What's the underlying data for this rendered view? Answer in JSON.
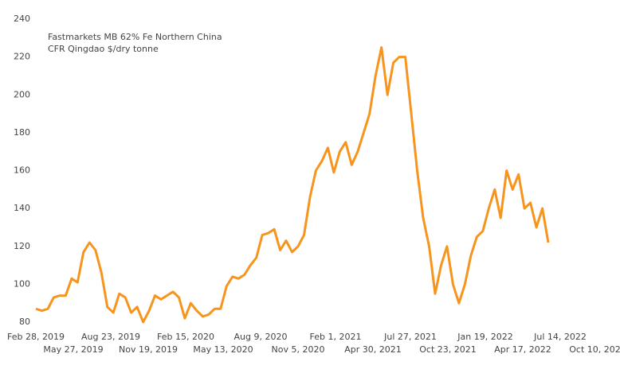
{
  "chart_data": {
    "type": "line",
    "title_lines": [
      "Fastmarkets MB 62% Fe Northern China",
      "CFR Qingdao $/dry tonne"
    ],
    "x": [
      "2019-02-28",
      "2019-03-14",
      "2019-03-28",
      "2019-04-11",
      "2019-04-25",
      "2019-05-09",
      "2019-05-23",
      "2019-06-06",
      "2019-06-20",
      "2019-07-04",
      "2019-07-18",
      "2019-08-01",
      "2019-08-15",
      "2019-08-29",
      "2019-09-12",
      "2019-09-26",
      "2019-10-10",
      "2019-10-24",
      "2019-11-07",
      "2019-11-21",
      "2019-12-05",
      "2019-12-19",
      "2020-01-02",
      "2020-01-16",
      "2020-01-30",
      "2020-02-13",
      "2020-02-27",
      "2020-03-12",
      "2020-03-26",
      "2020-04-09",
      "2020-04-23",
      "2020-05-07",
      "2020-05-21",
      "2020-06-04",
      "2020-06-18",
      "2020-07-02",
      "2020-07-16",
      "2020-07-30",
      "2020-08-13",
      "2020-08-27",
      "2020-09-10",
      "2020-09-24",
      "2020-10-08",
      "2020-10-22",
      "2020-11-05",
      "2020-11-19",
      "2020-12-03",
      "2020-12-17",
      "2020-12-31",
      "2021-01-14",
      "2021-01-28",
      "2021-02-11",
      "2021-02-25",
      "2021-03-11",
      "2021-03-25",
      "2021-04-08",
      "2021-04-22",
      "2021-05-06",
      "2021-05-20",
      "2021-06-03",
      "2021-06-17",
      "2021-07-01",
      "2021-07-15",
      "2021-07-29",
      "2021-08-12",
      "2021-08-26",
      "2021-09-09",
      "2021-09-23",
      "2021-10-07",
      "2021-10-21",
      "2021-11-04",
      "2021-11-18",
      "2021-12-02",
      "2021-12-16",
      "2021-12-30",
      "2022-01-13",
      "2022-01-27",
      "2022-02-10",
      "2022-02-24",
      "2022-03-10",
      "2022-03-24",
      "2022-04-07",
      "2022-04-21",
      "2022-05-05",
      "2022-05-19",
      "2022-06-02",
      "2022-06-16"
    ],
    "series": [
      {
        "color": "#f7941d",
        "values": [
          87,
          86,
          87,
          93,
          94,
          94,
          103,
          101,
          117,
          122,
          118,
          106,
          88,
          85,
          95,
          93,
          85,
          88,
          80,
          86,
          94,
          92,
          94,
          96,
          93,
          82,
          90,
          86,
          83,
          84,
          87,
          87,
          99,
          104,
          103,
          105,
          110,
          114,
          126,
          127,
          129,
          118,
          123,
          117,
          120,
          126,
          146,
          160,
          165,
          172,
          159,
          170,
          175,
          163,
          170,
          180,
          190,
          210,
          225,
          200,
          217,
          220,
          220,
          190,
          160,
          135,
          120,
          95,
          110,
          120,
          100,
          90,
          100,
          115,
          125,
          128,
          140,
          150,
          135,
          160,
          150,
          158,
          140,
          143,
          130,
          140,
          122
        ]
      }
    ],
    "xlim": [
      "2019-02-28",
      "2022-10-10"
    ],
    "xticks": [
      {
        "value": "2019-02-28",
        "label": "Feb 28, 2019"
      },
      {
        "value": "2019-05-27",
        "label": "May 27, 2019"
      },
      {
        "value": "2019-08-23",
        "label": "Aug 23, 2019"
      },
      {
        "value": "2019-11-19",
        "label": "Nov 19, 2019"
      },
      {
        "value": "2020-02-15",
        "label": "Feb 15, 2020"
      },
      {
        "value": "2020-05-13",
        "label": "May 13, 2020"
      },
      {
        "value": "2020-08-09",
        "label": "Aug 9, 2020"
      },
      {
        "value": "2020-11-05",
        "label": "Nov 5, 2020"
      },
      {
        "value": "2021-02-01",
        "label": "Feb 1, 2021"
      },
      {
        "value": "2021-04-30",
        "label": "Apr 30, 2021"
      },
      {
        "value": "2021-07-27",
        "label": "Jul 27, 2021"
      },
      {
        "value": "2021-10-23",
        "label": "Oct 23, 2021"
      },
      {
        "value": "2022-01-19",
        "label": "Jan 19, 2022"
      },
      {
        "value": "2022-04-17",
        "label": "Apr 17, 2022"
      },
      {
        "value": "2022-07-14",
        "label": "Jul 14, 2022"
      },
      {
        "value": "2022-10-10",
        "label": "Oct 10, 2022"
      }
    ],
    "ylim": [
      80,
      240
    ],
    "yticks": [
      80,
      100,
      120,
      140,
      160,
      180,
      200,
      220,
      240
    ],
    "grid": false
  }
}
